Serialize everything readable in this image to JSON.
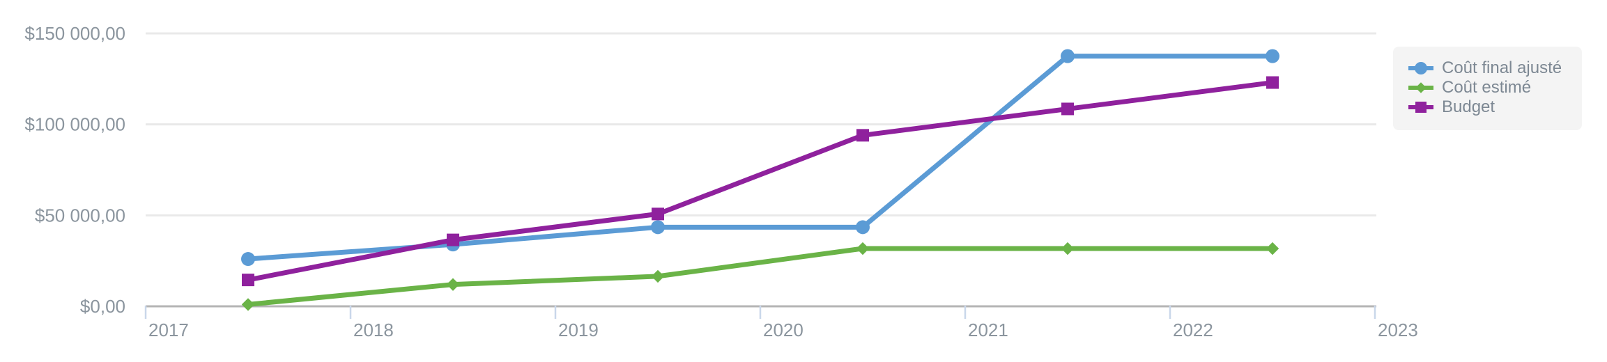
{
  "chart_data": {
    "type": "line",
    "title": "",
    "x": [
      2017.5,
      2018.5,
      2019.5,
      2020.5,
      2021.5,
      2022.5
    ],
    "series": [
      {
        "name": "Coût final ajusté",
        "marker": "circle",
        "color": "#5b9bd5",
        "values": [
          26000,
          34000,
          43500,
          43500,
          137500,
          137500
        ]
      },
      {
        "name": "Coût estimé",
        "marker": "diamond",
        "color": "#6ab347",
        "values": [
          1000,
          12000,
          16500,
          31750,
          31750,
          31750
        ]
      },
      {
        "name": "Budget",
        "marker": "square",
        "color": "#8f219d",
        "values": [
          14500,
          36500,
          50750,
          94000,
          108500,
          123000
        ]
      }
    ],
    "x_ticks": [
      2017,
      2018,
      2019,
      2020,
      2021,
      2022,
      2023
    ],
    "x_tick_labels": [
      "2017",
      "2018",
      "2019",
      "2020",
      "2021",
      "2022",
      "2023"
    ],
    "y_ticks": [
      0,
      50000,
      100000,
      150000
    ],
    "y_tick_labels": [
      "$0,00",
      "$50 000,00",
      "$100 000,00",
      "$150 000,00"
    ],
    "xlim": [
      2017,
      2023
    ],
    "ylim": [
      0,
      150000
    ],
    "grid": "horizontal",
    "legend_position": "top-right",
    "legend_items": [
      "Coût final ajusté",
      "Coût estimé",
      "Budget"
    ]
  },
  "colors": {
    "series_blue": "#5b9bd5",
    "series_green": "#6ab347",
    "series_purple": "#8f219d",
    "gridline": "#e9e9e9",
    "axis_line": "#b4b4b4",
    "tick_mark": "#c9d7ea",
    "axis_label": "#8b959e",
    "legend_bg": "#f4f4f4",
    "legend_text": "#7d8893"
  }
}
